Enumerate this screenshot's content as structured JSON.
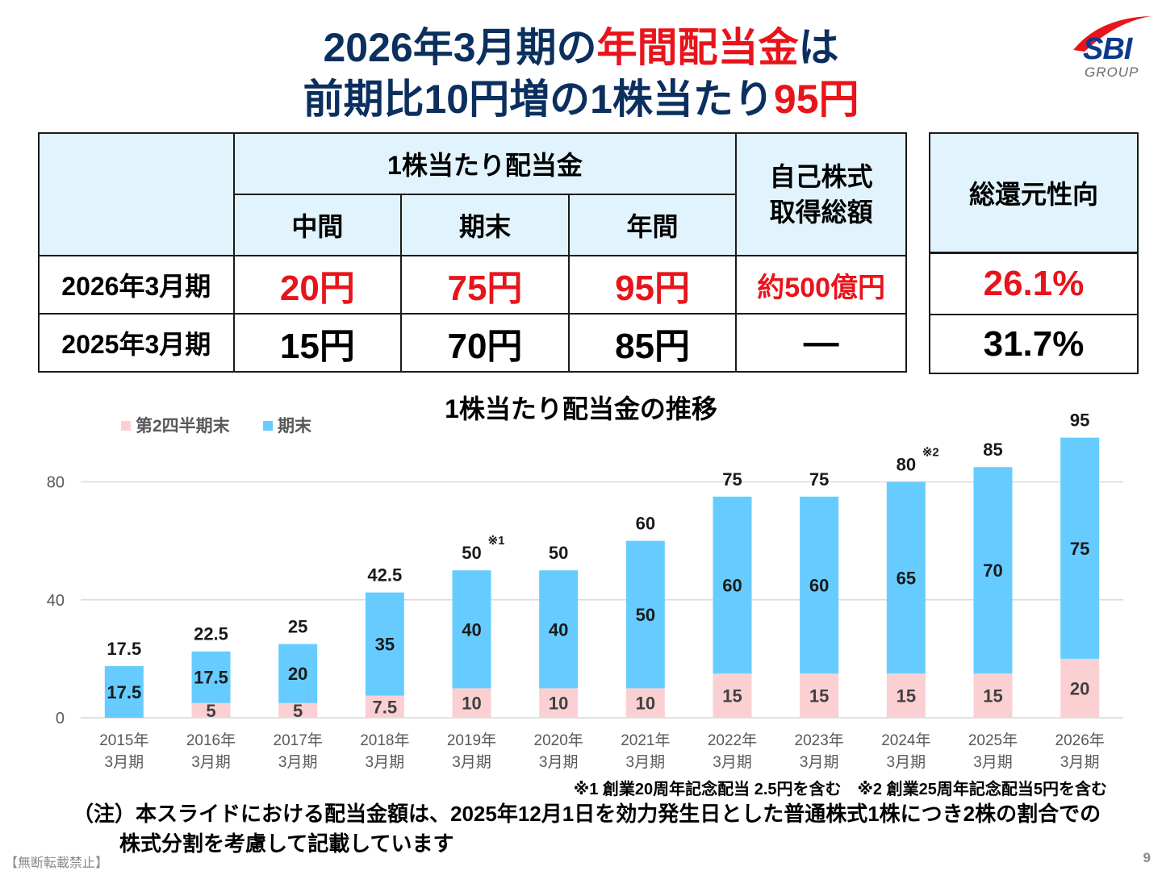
{
  "title": {
    "line1_pre": "2026年3月期の",
    "line1_red": "年間配当金",
    "line1_post": "は",
    "line2_pre": "前期比10円増の1株当たり",
    "line2_red": "95円"
  },
  "logo": {
    "text": "SBI",
    "sub": "GROUP",
    "colors": {
      "swoosh": "#e8141b",
      "text": "#0b3a8c"
    }
  },
  "table": {
    "dividend_header": "1株当たり配当金",
    "interim": "中間",
    "year_end": "期末",
    "annual": "年間",
    "buyback": "自己株式\n取得総額",
    "rows": [
      {
        "label": "2026年3月期",
        "interim": "20円",
        "year_end": "75円",
        "annual": "95円",
        "buyback": "約500億円"
      },
      {
        "label": "2025年3月期",
        "interim": "15円",
        "year_end": "70円",
        "annual": "85円",
        "buyback": "―"
      }
    ]
  },
  "payout": {
    "header": "総還元性向",
    "values": [
      "26.1%",
      "31.7%"
    ]
  },
  "chart_data": {
    "type": "bar",
    "stacked": true,
    "title": "1株当たり配当金の推移",
    "categories": [
      [
        "2015年",
        "3月期"
      ],
      [
        "2016年",
        "3月期"
      ],
      [
        "2017年",
        "3月期"
      ],
      [
        "2018年",
        "3月期"
      ],
      [
        "2019年",
        "3月期"
      ],
      [
        "2020年",
        "3月期"
      ],
      [
        "2021年",
        "3月期"
      ],
      [
        "2022年",
        "3月期"
      ],
      [
        "2023年",
        "3月期"
      ],
      [
        "2024年",
        "3月期"
      ],
      [
        "2025年",
        "3月期"
      ],
      [
        "2026年",
        "3月期"
      ]
    ],
    "series": [
      {
        "name": "第2四半期末",
        "color": "#fbd0d2",
        "values": [
          0,
          5,
          5,
          7.5,
          10,
          10,
          10,
          15,
          15,
          15,
          15,
          20
        ]
      },
      {
        "name": "期末",
        "color": "#66ccff",
        "values": [
          17.5,
          17.5,
          20,
          35,
          40,
          40,
          50,
          60,
          60,
          65,
          70,
          75
        ]
      }
    ],
    "totals": [
      "17.5",
      "22.5",
      "25",
      "42.5",
      "50",
      "50",
      "60",
      "75",
      "75",
      "80",
      "85",
      "95"
    ],
    "total_marks": [
      "",
      "",
      "",
      "",
      "※1",
      "",
      "",
      "",
      "",
      "※2",
      "",
      ""
    ],
    "ylim": [
      0,
      95
    ],
    "yticks": [
      0,
      40,
      80
    ],
    "grid": true,
    "legend": "top-left"
  },
  "notes": {
    "footnote": "※1 創業20周年記念配当 2.5円を含む　※2 創業25周年記念配当5円を含む",
    "note_line1": "（注）本スライドにおける配当金額は、2025年12月1日を効力発生日とした普通株式1株につき2株の割合での",
    "note_line2": "株式分割を考慮して記載しています",
    "footer": "【無断転載禁止】",
    "page": "9"
  }
}
